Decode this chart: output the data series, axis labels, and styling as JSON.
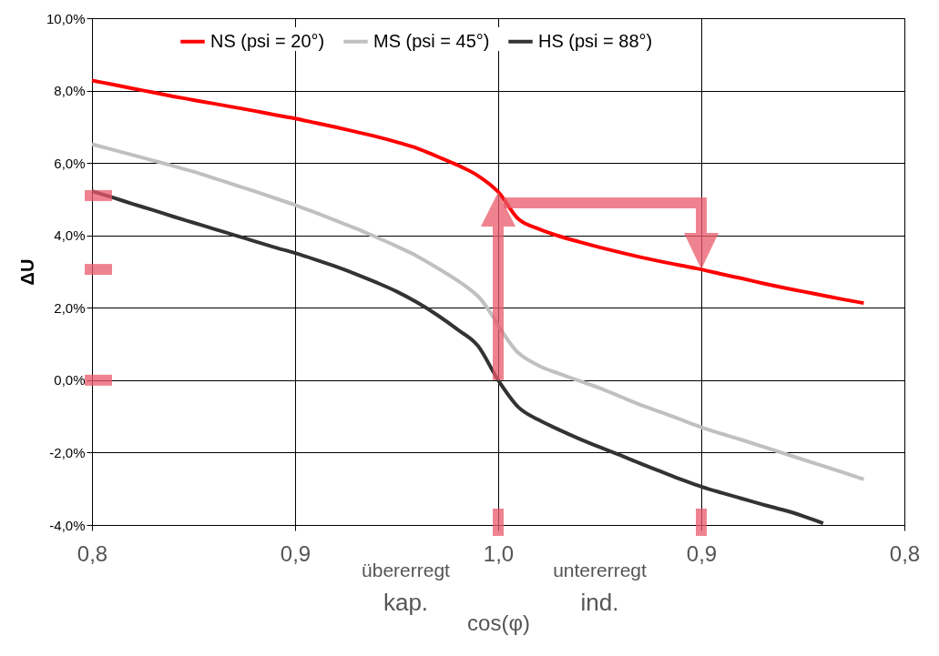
{
  "chart_data": {
    "type": "line",
    "xlabel": "cos(φ)",
    "ylabel": "ΔU",
    "categories": [
      "0,8",
      null,
      null,
      null,
      null,
      null,
      null,
      null,
      null,
      null,
      "0,9",
      null,
      null,
      null,
      null,
      null,
      null,
      null,
      null,
      null,
      "1,0",
      null,
      null,
      null,
      null,
      null,
      null,
      null,
      null,
      null,
      "0,9",
      null,
      null,
      null,
      null,
      null,
      null,
      null,
      null,
      null,
      "0,8"
    ],
    "ylim": [
      -4,
      10
    ],
    "yticks": [
      {
        "value": -4,
        "label": "-4,0%"
      },
      {
        "value": -2,
        "label": "-2,0%"
      },
      {
        "value": 0,
        "label": "0,0%"
      },
      {
        "value": 2,
        "label": "2,0%"
      },
      {
        "value": 4,
        "label": "4,0%"
      },
      {
        "value": 6,
        "label": "6,0%"
      },
      {
        "value": 8,
        "label": "8,0%"
      },
      {
        "value": 10,
        "label": "10,0%"
      }
    ],
    "series": [
      {
        "name": "NS (psi = 20°)",
        "color": "#ff0000",
        "values": [
          8.28,
          8.17,
          8.06,
          7.95,
          7.84,
          7.74,
          7.64,
          7.54,
          7.44,
          7.33,
          7.23,
          7.11,
          6.99,
          6.86,
          6.73,
          6.58,
          6.41,
          6.18,
          5.94,
          5.65,
          5.2,
          4.45,
          4.18,
          3.98,
          3.82,
          3.67,
          3.53,
          3.4,
          3.28,
          3.17,
          3.06,
          2.93,
          2.81,
          2.68,
          2.56,
          2.45,
          2.34,
          2.23,
          2.13,
          null,
          null
        ]
      },
      {
        "name": "MS (psi = 45°)",
        "color": "#c0c0c0",
        "values": [
          6.52,
          6.37,
          6.22,
          6.07,
          5.92,
          5.76,
          5.58,
          5.4,
          5.22,
          5.03,
          4.84,
          4.63,
          4.41,
          4.19,
          3.95,
          3.7,
          3.43,
          3.1,
          2.75,
          2.32,
          null,
          0.75,
          0.4,
          0.18,
          -0.02,
          -0.22,
          -0.45,
          -0.68,
          -0.88,
          -1.09,
          -1.3,
          -1.48,
          -1.65,
          -1.83,
          -2.01,
          -2.19,
          -2.37,
          -2.55,
          -2.74,
          null,
          null
        ]
      },
      {
        "name": "HS (psi = 88°)",
        "color": "#333333",
        "values": [
          5.22,
          5.05,
          4.87,
          4.7,
          4.52,
          4.35,
          4.18,
          4.01,
          3.84,
          3.67,
          3.51,
          3.33,
          3.14,
          2.93,
          2.7,
          2.45,
          2.15,
          1.8,
          1.4,
          0.95,
          0,
          -0.75,
          -1.1,
          -1.37,
          -1.62,
          -1.85,
          -2.07,
          -2.3,
          -2.52,
          -2.74,
          -2.94,
          -3.11,
          -3.27,
          -3.43,
          -3.58,
          -3.75,
          -3.95,
          null,
          null,
          null,
          null
        ]
      }
    ],
    "annotations": [
      "übererregt",
      "kap.",
      "untererregt",
      "ind."
    ],
    "grid": true,
    "legend": "top",
    "line_style": "solid",
    "marker": "none"
  }
}
